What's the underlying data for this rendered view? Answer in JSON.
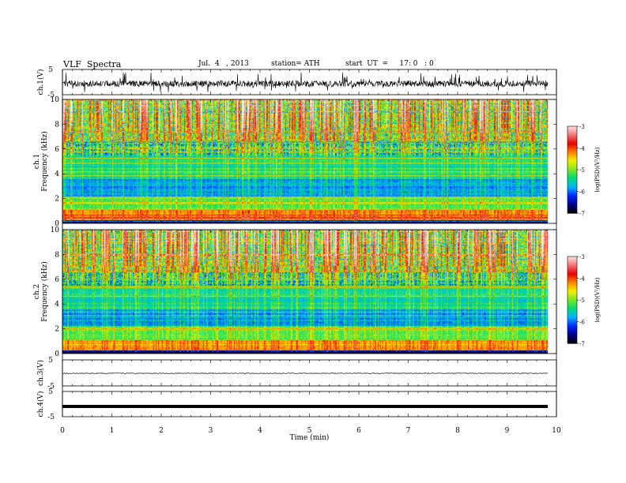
{
  "header": {
    "title": "VLF  Spectra",
    "date": "Jul.  4   , 2013",
    "station": "station= ATH",
    "start": "start  UT  =     17: 0   : 0"
  },
  "chart_data": [
    {
      "type": "line",
      "name": "ch1-waveform",
      "ylabel": "ch.1(V)",
      "ylim": [
        -5,
        5
      ],
      "yticks": [
        "5",
        "-5"
      ],
      "xlim": [
        0,
        10
      ],
      "note_level_V": 0.5
    },
    {
      "type": "heatmap",
      "name": "ch1-spectrogram",
      "ylabel_channel": "ch.1",
      "ylabel": "Frequency  (kHz)",
      "ylim": [
        0,
        10
      ],
      "yticks": [
        "0",
        "2",
        "4",
        "6",
        "8",
        "10"
      ],
      "xlim": [
        0,
        9.8
      ],
      "colorbar": {
        "label": "log(PSD)(V²/Hz)",
        "range": [
          -7,
          -3
        ],
        "ticks": [
          "-3",
          "-4",
          "-5",
          "-6",
          "-7"
        ]
      }
    },
    {
      "type": "heatmap",
      "name": "ch2-spectrogram",
      "ylabel_channel": "ch.2",
      "ylabel": "Frequency  (kHz)",
      "ylim": [
        0,
        10
      ],
      "yticks": [
        "0",
        "2",
        "4",
        "6",
        "8",
        "10"
      ],
      "xlim": [
        0,
        9.8
      ],
      "colorbar": {
        "label": "log(PSD)(V²/Hz)",
        "range": [
          -7,
          -3
        ],
        "ticks": [
          "-3",
          "-4",
          "-5",
          "-6",
          "-7"
        ]
      }
    },
    {
      "type": "line",
      "name": "ch3-waveform",
      "ylabel": "ch.3(V)",
      "ylim": [
        -5,
        5
      ],
      "yticks": [
        "5",
        "-5"
      ],
      "level_V": 0
    },
    {
      "type": "line",
      "name": "ch4-waveform",
      "ylabel": "ch.4(V)",
      "ylim": [
        -5,
        5
      ],
      "yticks": [
        "5",
        "-5"
      ],
      "level_V": 0
    }
  ],
  "xaxis": {
    "label": "Time  (min)",
    "range": [
      0,
      10
    ],
    "ticks": [
      "0",
      "1",
      "2",
      "3",
      "4",
      "5",
      "6",
      "7",
      "8",
      "9",
      "10"
    ]
  }
}
